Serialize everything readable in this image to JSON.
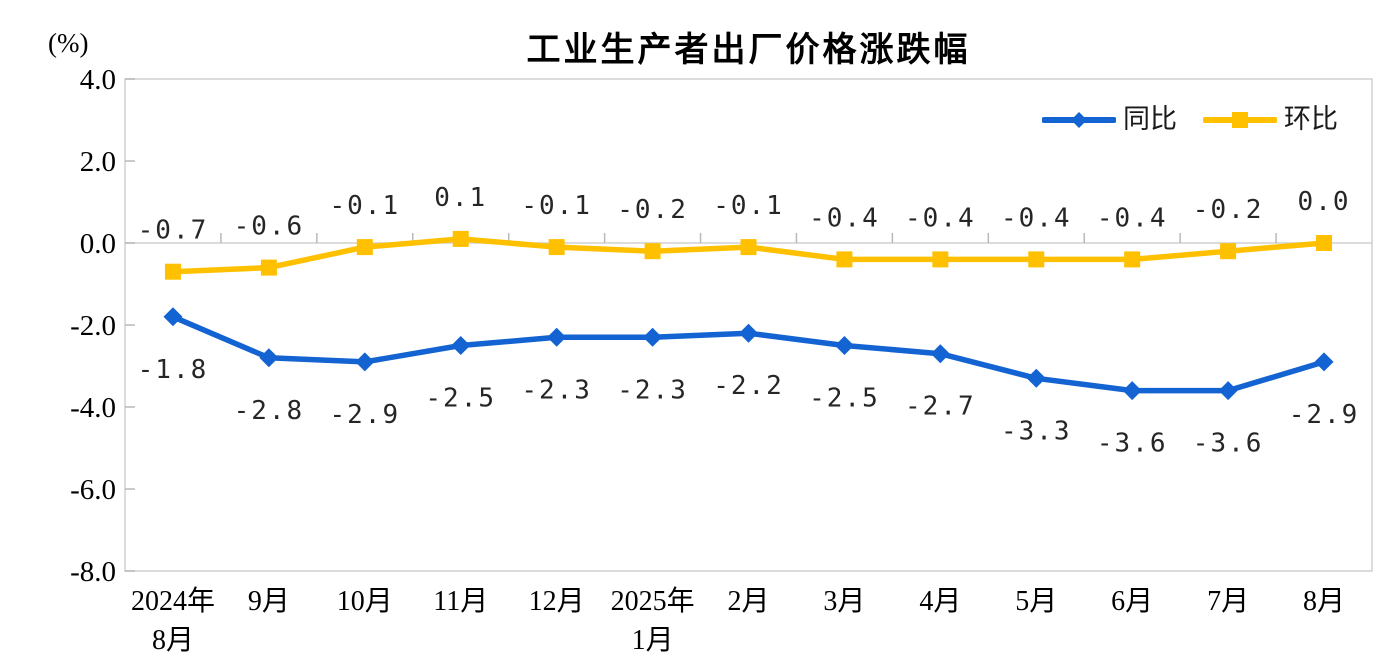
{
  "chart_data": {
    "type": "line",
    "title": "工业生产者出厂价格涨跌幅",
    "unit_label": "(%)",
    "categories": [
      [
        "2024年",
        "8月"
      ],
      [
        "9月"
      ],
      [
        "10月"
      ],
      [
        "11月"
      ],
      [
        "12月"
      ],
      [
        "2025年",
        "1月"
      ],
      [
        "2月"
      ],
      [
        "3月"
      ],
      [
        "4月"
      ],
      [
        "5月"
      ],
      [
        "6月"
      ],
      [
        "7月"
      ],
      [
        "8月"
      ]
    ],
    "series": [
      {
        "name": "同比",
        "color": "#1363d2",
        "marker": "diamond",
        "label_position": "below",
        "values": [
          -1.8,
          -2.8,
          -2.9,
          -2.5,
          -2.3,
          -2.3,
          -2.2,
          -2.5,
          -2.7,
          -3.3,
          -3.6,
          -3.6,
          -2.9
        ]
      },
      {
        "name": "环比",
        "color": "#ffc000",
        "marker": "square",
        "label_position": "above",
        "values": [
          -0.7,
          -0.6,
          -0.1,
          0.1,
          -0.1,
          -0.2,
          -0.1,
          -0.4,
          -0.4,
          -0.4,
          -0.4,
          -0.2,
          0.0
        ]
      }
    ],
    "y_axis": {
      "min": -8.0,
      "max": 4.0,
      "step": 2.0,
      "tick_labels": [
        "4.0",
        "2.0",
        "0.0",
        "-2.0",
        "-4.0",
        "-6.0",
        "-8.0"
      ]
    },
    "legend_position": "top-right",
    "grid": false,
    "axis_color": "#d0d0d0",
    "tick_color": "#b9b9b9",
    "label_color": "#262626"
  }
}
